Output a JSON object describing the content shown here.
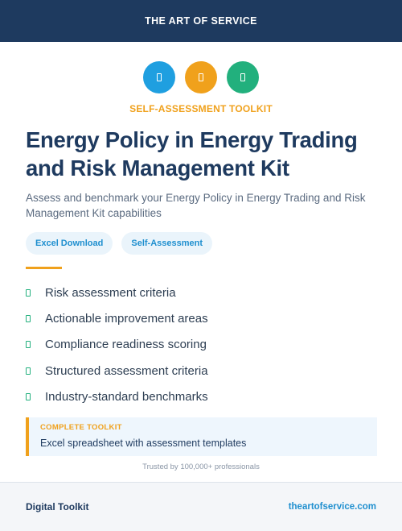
{
  "header": {
    "brand": "THE ART OF SERVICE"
  },
  "icons": [
    {
      "name": "icon-1",
      "color": "#1f9fe0"
    },
    {
      "name": "icon-2",
      "color": "#f0a11c"
    },
    {
      "name": "icon-3",
      "color": "#22b07d"
    }
  ],
  "kicker": "SELF-ASSESSMENT TOOLKIT",
  "title": "Energy Policy in Energy Trading and Risk Management Kit",
  "subtitle": "Assess and benchmark your Energy Policy in Energy Trading and Risk Management Kit capabilities",
  "tags": [
    "Excel Download",
    "Self-Assessment"
  ],
  "features": [
    "Risk assessment criteria",
    "Actionable improvement areas",
    "Compliance readiness scoring",
    "Structured assessment criteria",
    "Industry-standard benchmarks"
  ],
  "callout": {
    "heading": "COMPLETE TOOLKIT",
    "body": "Excel spreadsheet with assessment templates"
  },
  "trust_line": "Trusted by 100,000+ professionals",
  "footer": {
    "left": "Digital Toolkit",
    "right": "theartofservice.com"
  },
  "colors": {
    "navy": "#1e3a5f",
    "accent_orange": "#f0a11c",
    "accent_blue": "#1f9fe0",
    "accent_green": "#22b07d"
  }
}
